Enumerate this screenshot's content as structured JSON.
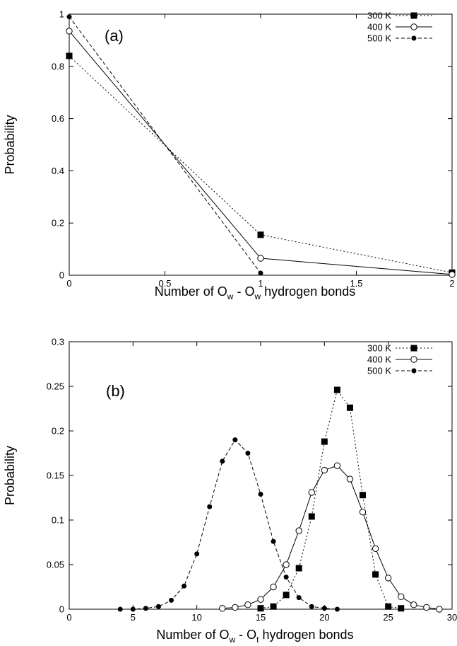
{
  "chart_data": [
    {
      "type": "line",
      "panel_label": "(a)",
      "xlabel_main": "Number of O",
      "xlabel_sub1": "w",
      "xlabel_mid": " - O",
      "xlabel_sub2": "w",
      "xlabel_tail": " hydrogen bonds",
      "ylabel": "Probability",
      "xlim": [
        0,
        2
      ],
      "ylim": [
        0,
        1
      ],
      "xticks": [
        0,
        0.5,
        1,
        1.5,
        2
      ],
      "xtick_labels": [
        "0",
        "0.5",
        "1",
        "1.5",
        "2"
      ],
      "yticks": [
        0,
        0.2,
        0.4,
        0.6,
        0.8,
        1
      ],
      "ytick_labels": [
        "0",
        "0.2",
        "0.4",
        "0.6",
        "0.8",
        "1"
      ],
      "legend_position": "top-right",
      "series": [
        {
          "name": "300 K",
          "marker": "filled-square",
          "line": "dotted",
          "x": [
            0,
            1,
            2
          ],
          "y": [
            0.84,
            0.155,
            0.01
          ]
        },
        {
          "name": "400 K",
          "marker": "open-circle",
          "line": "solid",
          "x": [
            0,
            1,
            2
          ],
          "y": [
            0.935,
            0.065,
            0.003
          ]
        },
        {
          "name": "500 K",
          "marker": "filled-circle",
          "line": "dashed",
          "x": [
            0,
            1
          ],
          "y": [
            0.99,
            0.008
          ]
        }
      ]
    },
    {
      "type": "line",
      "panel_label": "(b)",
      "xlabel_main": "Number of O",
      "xlabel_sub1": "w",
      "xlabel_mid": " - O",
      "xlabel_sub2": "t",
      "xlabel_tail": " hydrogen bonds",
      "ylabel": "Probability",
      "xlim": [
        0,
        30
      ],
      "ylim": [
        0,
        0.3
      ],
      "xticks": [
        0,
        5,
        10,
        15,
        20,
        25,
        30
      ],
      "xtick_labels": [
        "0",
        "5",
        "10",
        "15",
        "20",
        "25",
        "30"
      ],
      "yticks": [
        0,
        0.05,
        0.1,
        0.15,
        0.2,
        0.25,
        0.3
      ],
      "ytick_labels": [
        "0",
        "0.05",
        "0.1",
        "0.15",
        "0.2",
        "0.25",
        "0.3"
      ],
      "legend_position": "top-right",
      "series": [
        {
          "name": "300 K",
          "marker": "filled-square",
          "line": "dotted",
          "x": [
            15,
            16,
            17,
            18,
            19,
            20,
            21,
            22,
            23,
            24,
            25,
            26
          ],
          "y": [
            0.001,
            0.003,
            0.016,
            0.046,
            0.104,
            0.188,
            0.246,
            0.226,
            0.128,
            0.039,
            0.003,
            0.001
          ]
        },
        {
          "name": "400 K",
          "marker": "open-circle",
          "line": "solid",
          "x": [
            12,
            13,
            14,
            15,
            16,
            17,
            18,
            19,
            20,
            21,
            22,
            23,
            24,
            25,
            26,
            27,
            28,
            29
          ],
          "y": [
            0.001,
            0.002,
            0.005,
            0.011,
            0.025,
            0.05,
            0.088,
            0.131,
            0.156,
            0.161,
            0.146,
            0.109,
            0.068,
            0.035,
            0.014,
            0.005,
            0.002,
            0.0
          ]
        },
        {
          "name": "500 K",
          "marker": "filled-circle",
          "line": "dashed",
          "x": [
            4,
            5,
            6,
            7,
            8,
            9,
            10,
            11,
            12,
            13,
            14,
            15,
            16,
            17,
            18,
            19,
            20,
            21
          ],
          "y": [
            0.0,
            0.0,
            0.001,
            0.003,
            0.01,
            0.026,
            0.062,
            0.115,
            0.166,
            0.19,
            0.175,
            0.129,
            0.076,
            0.036,
            0.013,
            0.003,
            0.001,
            0.0
          ]
        }
      ]
    }
  ]
}
